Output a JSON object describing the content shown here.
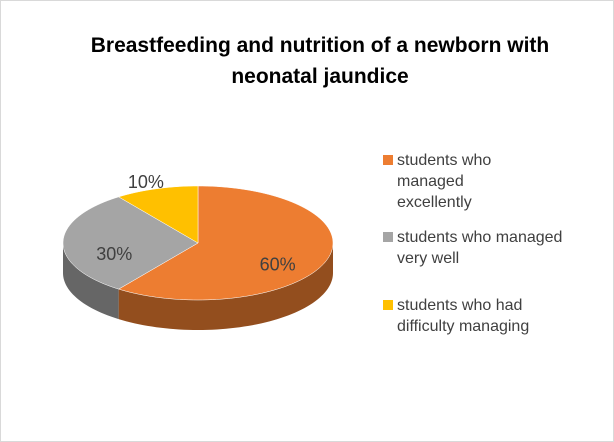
{
  "chart_data": {
    "type": "pie",
    "title": "Breastfeeding and nutrition of a newborn with neonatal jaundice",
    "categories": [
      "students who managed excellently",
      "students who managed very well",
      "students who had difficulty managing"
    ],
    "values": [
      60,
      30,
      10
    ],
    "value_labels": [
      "60%",
      "30%",
      "10%"
    ],
    "colors": [
      "#ED7D31",
      "#A5A5A5",
      "#FFC000"
    ],
    "legend": "right"
  }
}
